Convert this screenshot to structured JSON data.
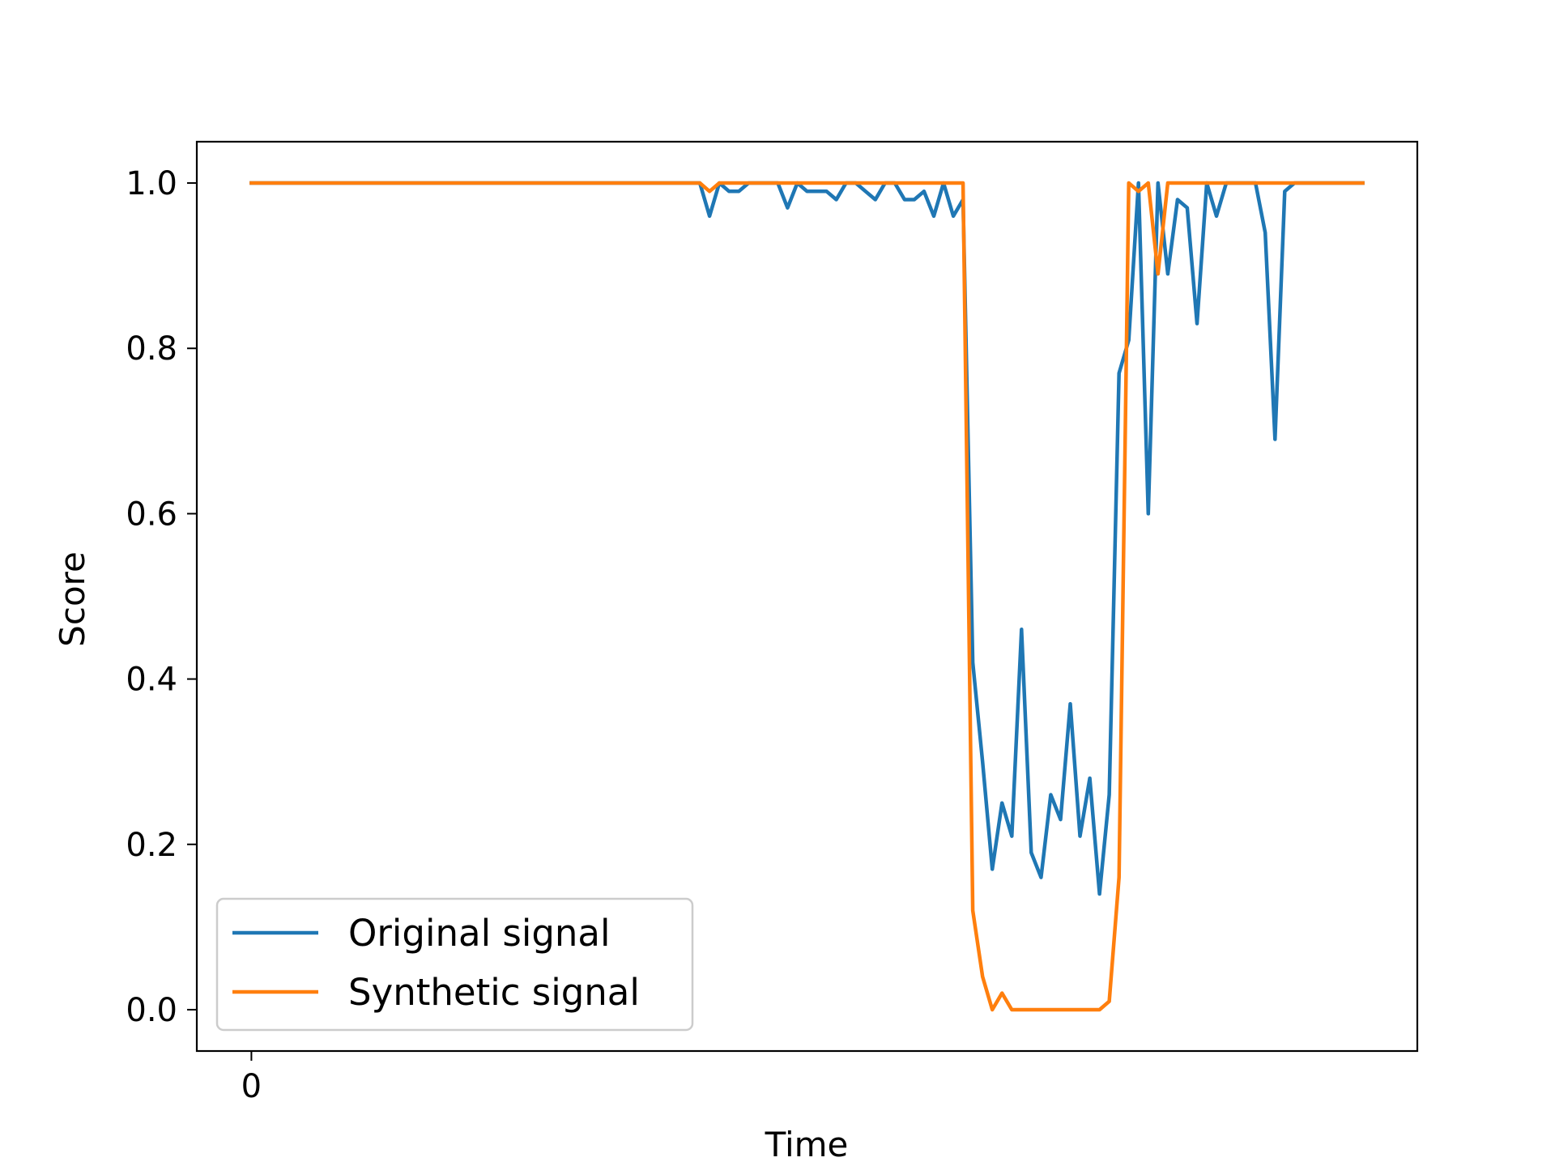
{
  "chart_data": {
    "type": "line",
    "title": "",
    "xlabel": "Time",
    "ylabel": "Score",
    "xlim": [
      -5.6,
      119.6
    ],
    "ylim": [
      -0.05,
      1.05
    ],
    "xticks": [
      0
    ],
    "yticks": [
      0.0,
      0.2,
      0.4,
      0.6,
      0.8,
      1.0
    ],
    "grid": false,
    "legend_position": "lower-left",
    "series": [
      {
        "name": "Original signal",
        "color": "#1f77b4",
        "x": [
          0,
          1,
          2,
          3,
          4,
          5,
          6,
          7,
          8,
          9,
          10,
          11,
          12,
          13,
          14,
          15,
          16,
          17,
          18,
          19,
          20,
          21,
          22,
          23,
          24,
          25,
          26,
          27,
          28,
          29,
          30,
          31,
          32,
          33,
          34,
          35,
          36,
          37,
          38,
          39,
          40,
          41,
          42,
          43,
          44,
          45,
          46,
          47,
          48,
          49,
          50,
          51,
          52,
          53,
          54,
          55,
          56,
          57,
          58,
          59,
          60,
          61,
          62,
          63,
          64,
          65,
          66,
          67,
          68,
          69,
          70,
          71,
          72,
          73,
          74,
          75,
          76,
          77,
          78,
          79,
          80,
          81,
          82,
          83,
          84,
          85,
          86,
          87,
          88,
          89,
          90,
          91,
          92,
          93,
          94,
          95,
          96,
          97,
          98,
          99,
          100,
          101,
          102,
          103,
          104,
          105,
          106,
          107,
          108,
          109,
          110,
          111,
          112,
          113,
          114
        ],
        "values": [
          1,
          1,
          1,
          1,
          1,
          1,
          1,
          1,
          1,
          1,
          1,
          1,
          1,
          1,
          1,
          1,
          1,
          1,
          1,
          1,
          1,
          1,
          1,
          1,
          1,
          1,
          1,
          1,
          1,
          1,
          1,
          1,
          1,
          1,
          1,
          1,
          1,
          1,
          1,
          1,
          1,
          1,
          1,
          1,
          1,
          1,
          1,
          0.96,
          1,
          0.99,
          0.99,
          1,
          1,
          1,
          1,
          0.97,
          1,
          0.99,
          0.99,
          0.99,
          0.98,
          1,
          1,
          0.99,
          0.98,
          1,
          1,
          0.98,
          0.98,
          0.99,
          0.96,
          1,
          0.96,
          0.98,
          0.42,
          0.3,
          0.17,
          0.25,
          0.21,
          0.46,
          0.19,
          0.16,
          0.26,
          0.23,
          0.37,
          0.21,
          0.28,
          0.14,
          0.26,
          0.77,
          0.81,
          1,
          0.6,
          1,
          0.89,
          0.98,
          0.97,
          0.83,
          1,
          0.96,
          1,
          1,
          1,
          1,
          0.94,
          0.69,
          0.99,
          1,
          1,
          1,
          1,
          1,
          1,
          1,
          1
        ]
      },
      {
        "name": "Synthetic signal",
        "color": "#ff7f0e",
        "x": [
          0,
          1,
          2,
          3,
          4,
          5,
          6,
          7,
          8,
          9,
          10,
          11,
          12,
          13,
          14,
          15,
          16,
          17,
          18,
          19,
          20,
          21,
          22,
          23,
          24,
          25,
          26,
          27,
          28,
          29,
          30,
          31,
          32,
          33,
          34,
          35,
          36,
          37,
          38,
          39,
          40,
          41,
          42,
          43,
          44,
          45,
          46,
          47,
          48,
          49,
          50,
          51,
          52,
          53,
          54,
          55,
          56,
          57,
          58,
          59,
          60,
          61,
          62,
          63,
          64,
          65,
          66,
          67,
          68,
          69,
          70,
          71,
          72,
          73,
          74,
          75,
          76,
          77,
          78,
          79,
          80,
          81,
          82,
          83,
          84,
          85,
          86,
          87,
          88,
          89,
          90,
          91,
          92,
          93,
          94,
          95,
          96,
          97,
          98,
          99,
          100,
          101,
          102,
          103,
          104,
          105,
          106,
          107,
          108,
          109,
          110,
          111,
          112,
          113,
          114
        ],
        "values": [
          1,
          1,
          1,
          1,
          1,
          1,
          1,
          1,
          1,
          1,
          1,
          1,
          1,
          1,
          1,
          1,
          1,
          1,
          1,
          1,
          1,
          1,
          1,
          1,
          1,
          1,
          1,
          1,
          1,
          1,
          1,
          1,
          1,
          1,
          1,
          1,
          1,
          1,
          1,
          1,
          1,
          1,
          1,
          1,
          1,
          1,
          1,
          0.99,
          1,
          1,
          1,
          1,
          1,
          1,
          1,
          1,
          1,
          1,
          1,
          1,
          1,
          1,
          1,
          1,
          1,
          1,
          1,
          1,
          1,
          1,
          1,
          1,
          1,
          1,
          0.12,
          0.04,
          0,
          0.02,
          0,
          0,
          0,
          0,
          0,
          0,
          0,
          0,
          0,
          0,
          0.01,
          0.16,
          1,
          0.99,
          1,
          0.89,
          1,
          1,
          1,
          1,
          1,
          1,
          1,
          1,
          1,
          1,
          1,
          1,
          1,
          1,
          1,
          1,
          1,
          1,
          1,
          1,
          1
        ]
      }
    ]
  }
}
